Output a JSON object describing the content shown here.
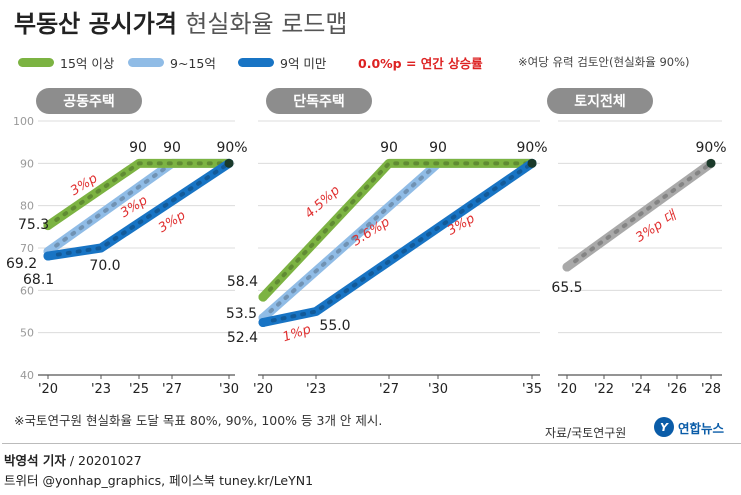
{
  "header": {
    "title": "부동산 공시가격",
    "subtitle": "현실화율 로드맵"
  },
  "legend": [
    {
      "label": "15억 이상",
      "color": "#7cb342"
    },
    {
      "label": "9~15억",
      "color": "#90bce6"
    },
    {
      "label": "9억 미만",
      "color": "#1874c4"
    }
  ],
  "notes": {
    "increase": "0.0%p = 연간 상승률",
    "target": "※여당 유력 검토안(현실화율 90%)"
  },
  "colors": {
    "green": "#7cb342",
    "light_blue": "#90bce6",
    "blue": "#1874c4",
    "gray": "#a9a9a9",
    "red_annotation": "#e03030",
    "panel_label_bg": "#8d8d8d"
  },
  "chart_data": [
    {
      "type": "line",
      "title": "공동주택",
      "ylim": [
        40,
        100
      ],
      "yticks": [
        "40",
        "50",
        "60",
        "70",
        "80",
        "90",
        "100"
      ],
      "x": [
        "'20",
        "'23",
        "'25",
        "'27",
        "'30"
      ],
      "series": [
        {
          "name": "15억 이상",
          "color": "green",
          "points": [
            [
              "'20",
              75.3
            ],
            [
              "'25",
              90
            ],
            [
              "'30",
              90
            ]
          ]
        },
        {
          "name": "9~15억",
          "color": "light_blue",
          "points": [
            [
              "'20",
              69.2
            ],
            [
              "'27",
              90
            ],
            [
              "'30",
              90
            ]
          ]
        },
        {
          "name": "9억 미만",
          "color": "blue",
          "points": [
            [
              "'20",
              68.1
            ],
            [
              "'23",
              70.0
            ],
            [
              "'30",
              90
            ]
          ]
        }
      ],
      "value_labels": [
        "75.3",
        "69.2",
        "68.1",
        "70.0",
        "90",
        "90",
        "90%"
      ],
      "rate_labels": [
        "3%p",
        "3%p",
        "3%p"
      ]
    },
    {
      "type": "line",
      "title": "단독주택",
      "ylim": [
        40,
        100
      ],
      "x": [
        "'20",
        "'23",
        "'27",
        "'30",
        "'35"
      ],
      "series": [
        {
          "name": "15억 이상",
          "color": "green",
          "points": [
            [
              "'20",
              58.4
            ],
            [
              "'27",
              90
            ],
            [
              "'35",
              90
            ]
          ]
        },
        {
          "name": "9~15억",
          "color": "light_blue",
          "points": [
            [
              "'20",
              53.5
            ],
            [
              "'30",
              90
            ],
            [
              "'35",
              90
            ]
          ]
        },
        {
          "name": "9억 미만",
          "color": "blue",
          "points": [
            [
              "'20",
              52.4
            ],
            [
              "'23",
              55.0
            ],
            [
              "'35",
              90
            ]
          ]
        }
      ],
      "value_labels": [
        "58.4",
        "53.5",
        "52.4",
        "55.0",
        "90",
        "90",
        "90%"
      ],
      "rate_labels": [
        "4.5%p",
        "3.6%p",
        "3%p",
        "1%p"
      ]
    },
    {
      "type": "line",
      "title": "토지전체",
      "ylim": [
        40,
        100
      ],
      "x": [
        "'20",
        "'22",
        "'24",
        "'26",
        "'28"
      ],
      "series": [
        {
          "name": "토지전체",
          "color": "gray",
          "points": [
            [
              "'20",
              65.5
            ],
            [
              "'28",
              90
            ]
          ]
        }
      ],
      "value_labels": [
        "65.5",
        "90%"
      ],
      "rate_labels": [
        "3%p 대"
      ]
    }
  ],
  "footnote": "※국토연구원 현실화율 도달 목표 80%, 90%, 100% 등 3개 안 제시.",
  "source": "자료/국토연구원",
  "logo": {
    "mark": "Y",
    "text": "연합뉴스"
  },
  "credit": {
    "reporter": "박영석 기자",
    "date": "/ 20201027",
    "social": "트위터 @yonhap_graphics, 페이스북 tuney.kr/LeYN1"
  }
}
